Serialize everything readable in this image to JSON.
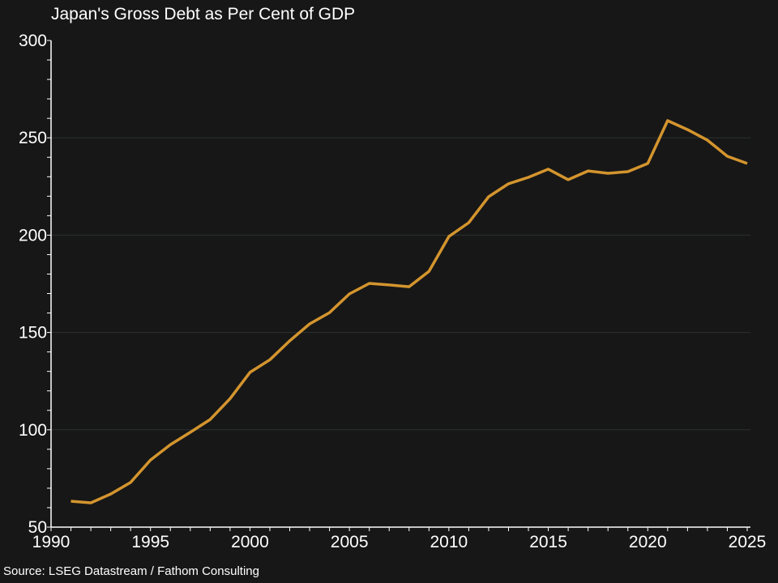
{
  "chart_data": {
    "type": "line",
    "title": "Japan's Gross Debt as Per Cent of GDP",
    "source": "Source: LSEG Datastream / Fathom Consulting",
    "xlim": [
      1990,
      2025
    ],
    "ylim": [
      50,
      300
    ],
    "xticks": [
      1990,
      1995,
      2000,
      2005,
      2010,
      2015,
      2020,
      2025
    ],
    "yticks": [
      50,
      100,
      150,
      200,
      250,
      300
    ],
    "grid": true,
    "line_color": "#d4952e",
    "x": [
      1991,
      1992,
      1993,
      1994,
      1995,
      1996,
      1997,
      1998,
      1999,
      2000,
      2001,
      2002,
      2003,
      2004,
      2005,
      2006,
      2007,
      2008,
      2009,
      2010,
      2011,
      2012,
      2013,
      2014,
      2015,
      2016,
      2017,
      2018,
      2019,
      2020,
      2021,
      2022,
      2023,
      2024,
      2025
    ],
    "values": [
      63.3,
      62.5,
      67,
      73,
      84.5,
      92.4,
      98.7,
      105.3,
      116,
      129.5,
      136,
      145.7,
      154.4,
      160.2,
      169.8,
      175.2,
      174.4,
      173.5,
      181.4,
      199.3,
      206.4,
      219.7,
      226.4,
      229.7,
      233.9,
      228.5,
      233,
      231.8,
      232.6,
      236.8,
      258.8,
      254.2,
      248.8,
      240.5,
      236.8
    ]
  }
}
